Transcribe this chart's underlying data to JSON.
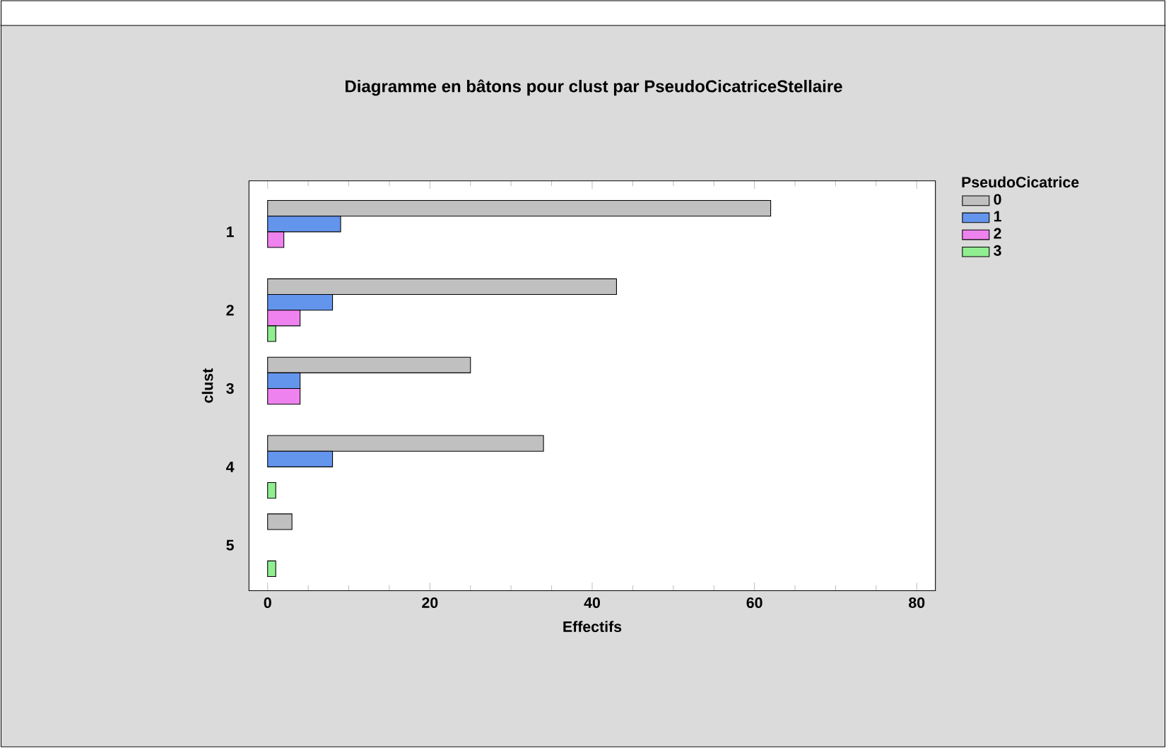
{
  "chart_data": {
    "type": "bar",
    "orientation": "horizontal",
    "title": "Diagramme en bâtons pour clust par PseudoCicatriceStellaire",
    "xlabel": "Effectifs",
    "ylabel": "clust",
    "legend_title": "PseudoCicatrice",
    "legend": "top right",
    "grid": false,
    "categories": [
      "1",
      "2",
      "3",
      "4",
      "5"
    ],
    "xlim": [
      -2.3,
      82.3
    ],
    "xticks": [
      0,
      20,
      40,
      60,
      80
    ],
    "series": [
      {
        "name": "0",
        "color": "#c0c0c0",
        "values": [
          62,
          43,
          25,
          34,
          3
        ]
      },
      {
        "name": "1",
        "color": "#6495ed",
        "values": [
          9,
          8,
          4,
          8,
          0
        ]
      },
      {
        "name": "2",
        "color": "#ee82ee",
        "values": [
          2,
          4,
          4,
          0,
          0
        ]
      },
      {
        "name": "3",
        "color": "#90ee90",
        "values": [
          0,
          1,
          0,
          1,
          1
        ]
      }
    ]
  }
}
